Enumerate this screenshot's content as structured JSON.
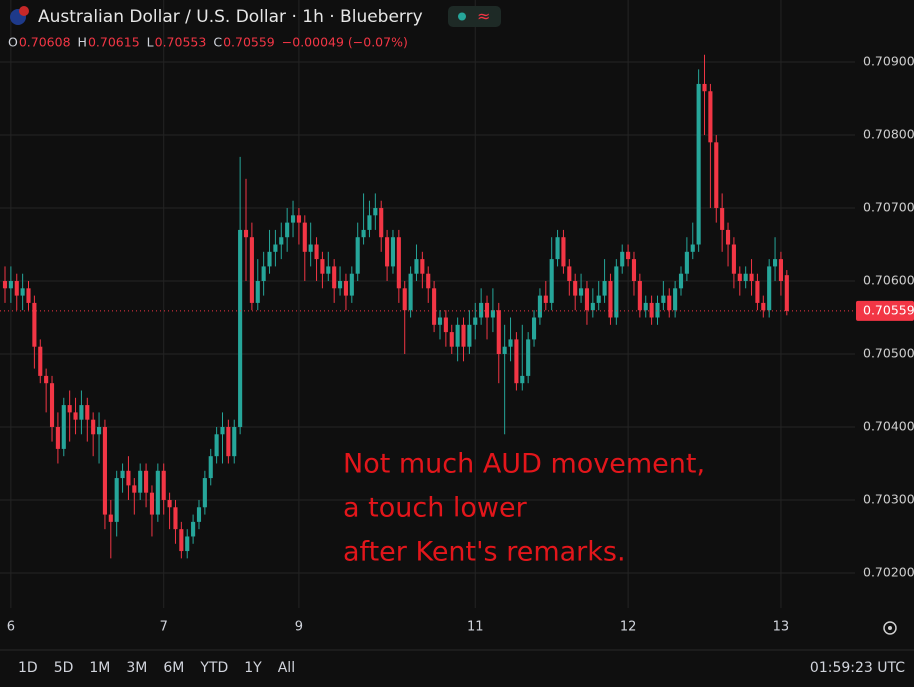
{
  "header": {
    "title": "Australian Dollar / U.S. Dollar · 1h · Blueberry",
    "ohlc": [
      {
        "label": "O",
        "value": "0.70608"
      },
      {
        "label": "H",
        "value": "0.70615"
      },
      {
        "label": "L",
        "value": "0.70553"
      },
      {
        "label": "C",
        "value": "0.70559"
      }
    ],
    "change": "−0.00049 (−0.07%)"
  },
  "chart_data": {
    "type": "candlestick",
    "up_color": "#26a69a",
    "down_color": "#f23645",
    "grid": true,
    "open": [
      0.706,
      0.7059,
      0.706,
      0.7058,
      0.7059,
      0.7057,
      0.7051,
      0.7047,
      0.7046,
      0.704,
      0.7037,
      0.7043,
      0.7042,
      0.7041,
      0.7043,
      0.7041,
      0.7039,
      0.704,
      0.7028,
      0.7027,
      0.7033,
      0.7034,
      0.7032,
      0.7031,
      0.7034,
      0.7031,
      0.7028,
      0.7034,
      0.703,
      0.7029,
      0.7026,
      0.7023,
      0.7025,
      0.7027,
      0.7029,
      0.7033,
      0.7036,
      0.7039,
      0.704,
      0.7036,
      0.704,
      0.7067,
      0.7066,
      0.7057,
      0.706,
      0.7062,
      0.7064,
      0.7065,
      0.7066,
      0.7068,
      0.7069,
      0.7068,
      0.7064,
      0.7065,
      0.7063,
      0.7061,
      0.7062,
      0.7059,
      0.706,
      0.7058,
      0.7061,
      0.7066,
      0.7067,
      0.7069,
      0.707,
      0.7066,
      0.7062,
      0.7066,
      0.7059,
      0.7056,
      0.7061,
      0.7063,
      0.7061,
      0.7059,
      0.7054,
      0.7055,
      0.7053,
      0.7051,
      0.7054,
      0.7051,
      0.7054,
      0.7055,
      0.7057,
      0.7055,
      0.7056,
      0.705,
      0.7051,
      0.7052,
      0.7046,
      0.7047,
      0.7052,
      0.7055,
      0.7058,
      0.7057,
      0.7063,
      0.7066,
      0.7062,
      0.706,
      0.7058,
      0.7059,
      0.7056,
      0.7057,
      0.7058,
      0.706,
      0.7055,
      0.7062,
      0.7064,
      0.7063,
      0.706,
      0.7056,
      0.7057,
      0.7055,
      0.7057,
      0.7058,
      0.7056,
      0.7059,
      0.7061,
      0.7064,
      0.7065,
      0.7087,
      0.7086,
      0.7079,
      0.707,
      0.7067,
      0.7065,
      0.7061,
      0.706,
      0.7061,
      0.706,
      0.7057,
      0.7056,
      0.7062,
      0.7063,
      0.70608
    ],
    "high": [
      0.7062,
      0.7062,
      0.7061,
      0.7061,
      0.706,
      0.7058,
      0.7052,
      0.7048,
      0.7047,
      0.7042,
      0.7044,
      0.7045,
      0.7044,
      0.7045,
      0.7044,
      0.7042,
      0.7042,
      0.7041,
      0.703,
      0.7034,
      0.7035,
      0.7036,
      0.7033,
      0.7035,
      0.7035,
      0.7032,
      0.7035,
      0.7035,
      0.7031,
      0.703,
      0.7027,
      0.7026,
      0.7028,
      0.703,
      0.7034,
      0.7037,
      0.704,
      0.7042,
      0.7041,
      0.7041,
      0.7077,
      0.7074,
      0.7068,
      0.7063,
      0.7064,
      0.7067,
      0.7067,
      0.7068,
      0.707,
      0.7071,
      0.707,
      0.7069,
      0.7068,
      0.7066,
      0.7064,
      0.7064,
      0.7063,
      0.7062,
      0.7061,
      0.7062,
      0.7068,
      0.7072,
      0.7071,
      0.7072,
      0.7071,
      0.7067,
      0.7067,
      0.7067,
      0.706,
      0.7062,
      0.7065,
      0.7064,
      0.7062,
      0.706,
      0.7056,
      0.7056,
      0.7054,
      0.7055,
      0.7055,
      0.7056,
      0.7057,
      0.7059,
      0.7058,
      0.7059,
      0.7057,
      0.7054,
      0.7055,
      0.7053,
      0.7054,
      0.7053,
      0.7056,
      0.7059,
      0.706,
      0.7066,
      0.7067,
      0.7067,
      0.7063,
      0.7061,
      0.7061,
      0.706,
      0.7059,
      0.706,
      0.7063,
      0.7061,
      0.7063,
      0.7065,
      0.7065,
      0.7064,
      0.7061,
      0.7058,
      0.7058,
      0.7058,
      0.706,
      0.7059,
      0.706,
      0.7062,
      0.7066,
      0.7068,
      0.7089,
      0.7091,
      0.7087,
      0.708,
      0.7072,
      0.7068,
      0.7066,
      0.7062,
      0.7062,
      0.7063,
      0.7061,
      0.7058,
      0.7063,
      0.7066,
      0.7064,
      0.70615
    ],
    "low": [
      0.7057,
      0.7057,
      0.7056,
      0.7056,
      0.7056,
      0.7048,
      0.7046,
      0.7042,
      0.7038,
      0.7035,
      0.7036,
      0.7038,
      0.7039,
      0.7039,
      0.7038,
      0.7036,
      0.7035,
      0.7026,
      0.7022,
      0.7025,
      0.7031,
      0.703,
      0.7028,
      0.703,
      0.7029,
      0.7025,
      0.7027,
      0.7028,
      0.7026,
      0.7024,
      0.7022,
      0.7022,
      0.7024,
      0.7026,
      0.7028,
      0.7032,
      0.7035,
      0.7035,
      0.7035,
      0.7035,
      0.7039,
      0.706,
      0.7056,
      0.7056,
      0.7058,
      0.7061,
      0.7062,
      0.7063,
      0.7064,
      0.7066,
      0.7065,
      0.706,
      0.7062,
      0.706,
      0.7059,
      0.706,
      0.7057,
      0.7058,
      0.7056,
      0.7057,
      0.706,
      0.7065,
      0.7066,
      0.7067,
      0.7064,
      0.706,
      0.7061,
      0.7057,
      0.705,
      0.7055,
      0.706,
      0.7059,
      0.7057,
      0.7053,
      0.7052,
      0.7051,
      0.705,
      0.7049,
      0.7049,
      0.705,
      0.7052,
      0.7054,
      0.7052,
      0.7053,
      0.7046,
      0.7039,
      0.7049,
      0.7045,
      0.7045,
      0.7046,
      0.7051,
      0.7054,
      0.7056,
      0.7056,
      0.7062,
      0.7061,
      0.7058,
      0.7056,
      0.7057,
      0.7054,
      0.7055,
      0.7056,
      0.7057,
      0.7054,
      0.7054,
      0.7061,
      0.7062,
      0.7058,
      0.7055,
      0.7055,
      0.7054,
      0.7054,
      0.7056,
      0.7055,
      0.7055,
      0.7058,
      0.706,
      0.7063,
      0.7064,
      0.708,
      0.707,
      0.7068,
      0.7064,
      0.7062,
      0.7059,
      0.7058,
      0.7059,
      0.7058,
      0.7056,
      0.7055,
      0.7055,
      0.706,
      0.7058,
      0.70553
    ],
    "close": [
      0.7059,
      0.706,
      0.7058,
      0.7059,
      0.7057,
      0.7051,
      0.7047,
      0.7046,
      0.704,
      0.7037,
      0.7043,
      0.7042,
      0.7041,
      0.7043,
      0.7041,
      0.7039,
      0.704,
      0.7028,
      0.7027,
      0.7033,
      0.7034,
      0.7032,
      0.7031,
      0.7034,
      0.7031,
      0.7028,
      0.7034,
      0.703,
      0.7029,
      0.7026,
      0.7023,
      0.7025,
      0.7027,
      0.7029,
      0.7033,
      0.7036,
      0.7039,
      0.704,
      0.7036,
      0.704,
      0.7067,
      0.7066,
      0.7057,
      0.706,
      0.7062,
      0.7064,
      0.7065,
      0.7066,
      0.7068,
      0.7069,
      0.7068,
      0.7064,
      0.7065,
      0.7063,
      0.7061,
      0.7062,
      0.7059,
      0.706,
      0.7058,
      0.7061,
      0.7066,
      0.7067,
      0.7069,
      0.707,
      0.7066,
      0.7062,
      0.7066,
      0.7059,
      0.7056,
      0.7061,
      0.7063,
      0.7061,
      0.7059,
      0.7054,
      0.7055,
      0.7053,
      0.7051,
      0.7054,
      0.7051,
      0.7054,
      0.7055,
      0.7057,
      0.7055,
      0.7056,
      0.705,
      0.7051,
      0.7052,
      0.7046,
      0.7047,
      0.7052,
      0.7055,
      0.7058,
      0.7057,
      0.7063,
      0.7066,
      0.7062,
      0.706,
      0.7058,
      0.7059,
      0.7056,
      0.7057,
      0.7058,
      0.706,
      0.7055,
      0.7062,
      0.7064,
      0.7063,
      0.706,
      0.7056,
      0.7057,
      0.7055,
      0.7057,
      0.7058,
      0.7056,
      0.7059,
      0.7061,
      0.7064,
      0.7065,
      0.7087,
      0.7086,
      0.7079,
      0.707,
      0.7067,
      0.7065,
      0.7061,
      0.706,
      0.7061,
      0.706,
      0.7057,
      0.7056,
      0.7062,
      0.7063,
      0.706,
      0.70559
    ],
    "xlim": [
      -0.85,
      144.6
    ],
    "xticks": [
      {
        "value": 1,
        "label": "6"
      },
      {
        "value": 27,
        "label": "7"
      },
      {
        "value": 50,
        "label": "9"
      },
      {
        "value": 80,
        "label": "11"
      },
      {
        "value": 106,
        "label": "12"
      },
      {
        "value": 132,
        "label": "13"
      }
    ],
    "ylim": [
      0.70152,
      0.70985
    ],
    "yticks": [
      {
        "value": 0.709,
        "label": "0.70900"
      },
      {
        "value": 0.708,
        "label": "0.70800"
      },
      {
        "value": 0.707,
        "label": "0.70700"
      },
      {
        "value": 0.706,
        "label": "0.70600"
      },
      {
        "value": 0.705,
        "label": "0.70500"
      },
      {
        "value": 0.704,
        "label": "0.70400"
      },
      {
        "value": 0.703,
        "label": "0.70300"
      },
      {
        "value": 0.702,
        "label": "0.70200"
      }
    ],
    "last_price": 0.70559,
    "annotation": [
      "Not much AUD movement,",
      "a touch lower",
      "after Kent's remarks."
    ]
  },
  "toolbar": {
    "ranges": [
      "1D",
      "5D",
      "1M",
      "3M",
      "6M",
      "YTD",
      "1Y",
      "All"
    ],
    "clock": "01:59:23 UTC"
  }
}
